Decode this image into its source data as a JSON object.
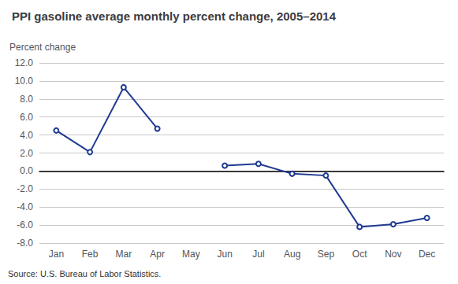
{
  "chart_data": {
    "type": "line",
    "title": "PPI gasoline average monthly percent change, 2005–2014",
    "ylabel": "Percent change",
    "annotations": [
      "Source: U.S. Bureau of Labor Statistics."
    ],
    "categories": [
      "Jan",
      "Feb",
      "Mar",
      "Apr",
      "May",
      "Jun",
      "Jul",
      "Aug",
      "Sep",
      "Oct",
      "Nov",
      "Dec"
    ],
    "values": [
      4.5,
      2.1,
      9.3,
      4.7,
      null,
      0.6,
      0.8,
      -0.3,
      -0.5,
      -6.2,
      -5.9,
      -5.2
    ],
    "color": "#1f3a93",
    "ylim": [
      -8.0,
      12.0
    ],
    "yticks": [
      {
        "value": -8,
        "label": "-8.0"
      },
      {
        "value": -6,
        "label": "-6.0"
      },
      {
        "value": -4,
        "label": "-4.0"
      },
      {
        "value": -2,
        "label": "-2.0"
      },
      {
        "value": 0,
        "label": "0.0"
      },
      {
        "value": 2,
        "label": "2.0"
      },
      {
        "value": 4,
        "label": "4.0"
      },
      {
        "value": 6,
        "label": "6.0"
      },
      {
        "value": 8,
        "label": "8.0"
      },
      {
        "value": 10,
        "label": "10.0"
      },
      {
        "value": 12,
        "label": "12.0"
      }
    ],
    "grid": true
  }
}
